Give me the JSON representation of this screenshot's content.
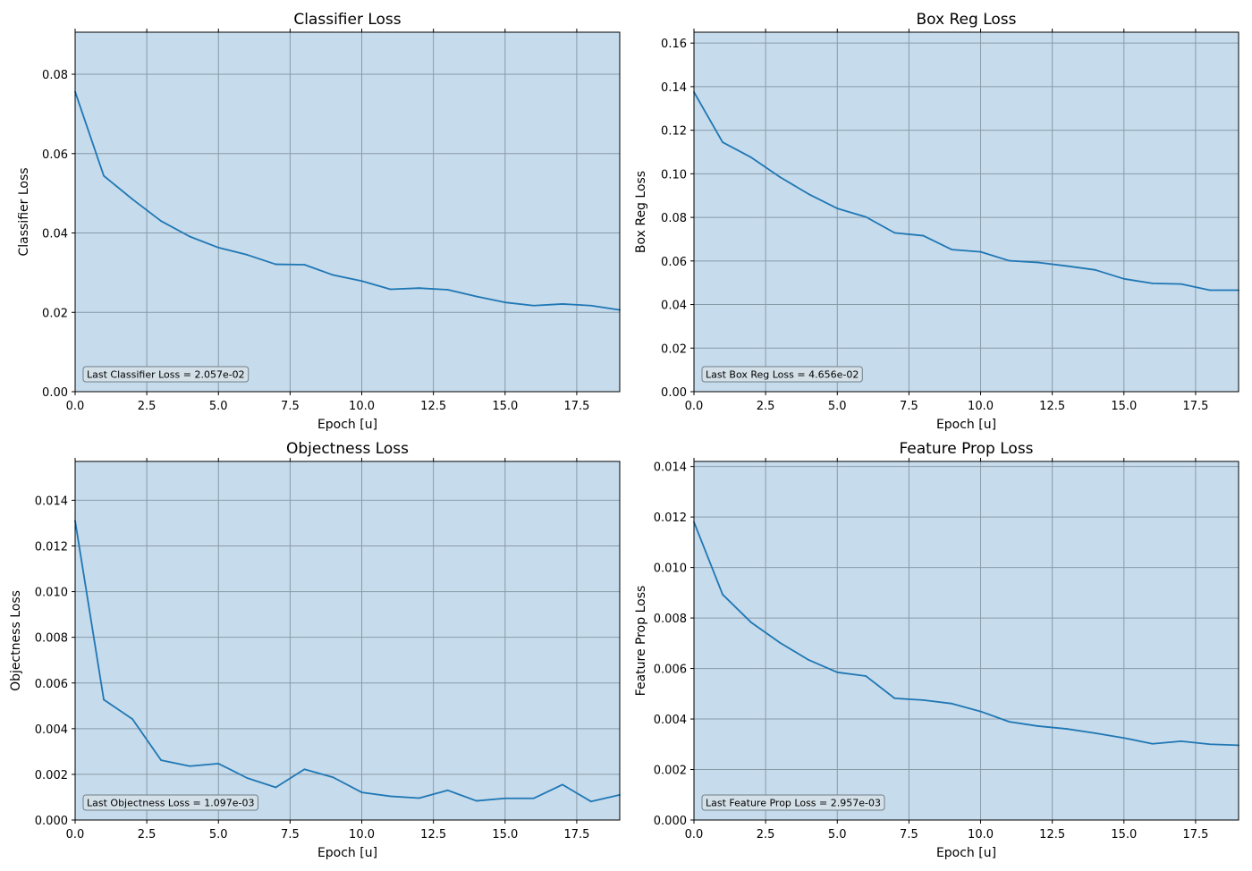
{
  "chart_data": [
    {
      "type": "line",
      "title": "Classifier Loss",
      "xlabel": "Epoch [u]",
      "ylabel": "Classifier Loss",
      "xlim": [
        0,
        19
      ],
      "ylim": [
        0,
        0.0906
      ],
      "xticks": [
        0,
        2.5,
        5,
        7.5,
        10,
        12.5,
        15,
        17.5
      ],
      "xtick_labels": [
        "0.0",
        "2.5",
        "5.0",
        "7.5",
        "10.0",
        "12.5",
        "15.0",
        "17.5"
      ],
      "yticks": [
        0,
        0.02,
        0.04,
        0.06,
        0.08
      ],
      "ytick_labels": [
        "0.00",
        "0.02",
        "0.04",
        "0.06",
        "0.08"
      ],
      "grid": true,
      "fill_color": "#c6dbec",
      "line_color": "#1f77b4",
      "annotation": "Last Classifier Loss = 2.057e-02",
      "series": [
        {
          "x": [
            0,
            1,
            2,
            3,
            4,
            5,
            6,
            7,
            8,
            9,
            10,
            11,
            12,
            13,
            14,
            15,
            16,
            17,
            18,
            19
          ],
          "y": [
            0.0756,
            0.0544,
            0.0485,
            0.043,
            0.0391,
            0.0363,
            0.0345,
            0.0321,
            0.032,
            0.0294,
            0.0279,
            0.0258,
            0.0261,
            0.0257,
            0.024,
            0.0225,
            0.0217,
            0.0221,
            0.0217,
            0.0206
          ]
        }
      ]
    },
    {
      "type": "line",
      "title": "Box Reg Loss",
      "xlabel": "Epoch [u]",
      "ylabel": "Box Reg Loss",
      "xlim": [
        0,
        19
      ],
      "ylim": [
        0,
        0.165
      ],
      "xticks": [
        0,
        2.5,
        5,
        7.5,
        10,
        12.5,
        15,
        17.5
      ],
      "xtick_labels": [
        "0.0",
        "2.5",
        "5.0",
        "7.5",
        "10.0",
        "12.5",
        "15.0",
        "17.5"
      ],
      "yticks": [
        0,
        0.02,
        0.04,
        0.06,
        0.08,
        0.1,
        0.12,
        0.14,
        0.16
      ],
      "ytick_labels": [
        "0.00",
        "0.02",
        "0.04",
        "0.06",
        "0.08",
        "0.10",
        "0.12",
        "0.14",
        "0.16"
      ],
      "grid": true,
      "fill_color": "#c6dbec",
      "line_color": "#1f77b4",
      "annotation": "Last Box Reg Loss = 4.656e-02",
      "series": [
        {
          "x": [
            0,
            1,
            2,
            3,
            4,
            5,
            6,
            7,
            8,
            9,
            10,
            11,
            12,
            13,
            14,
            15,
            16,
            17,
            18,
            19
          ],
          "y": [
            0.1375,
            0.1145,
            0.1075,
            0.0985,
            0.0907,
            0.0841,
            0.0802,
            0.0729,
            0.0716,
            0.0652,
            0.0642,
            0.0601,
            0.0593,
            0.0577,
            0.0559,
            0.0518,
            0.0497,
            0.0494,
            0.0466,
            0.0466
          ]
        }
      ]
    },
    {
      "type": "line",
      "title": "Objectness Loss",
      "xlabel": "Epoch [u]",
      "ylabel": "Objectness Loss",
      "xlim": [
        0,
        19
      ],
      "ylim": [
        0,
        0.0157
      ],
      "xticks": [
        0,
        2.5,
        5,
        7.5,
        10,
        12.5,
        15,
        17.5
      ],
      "xtick_labels": [
        "0.0",
        "2.5",
        "5.0",
        "7.5",
        "10.0",
        "12.5",
        "15.0",
        "17.5"
      ],
      "yticks": [
        0,
        0.002,
        0.004,
        0.006,
        0.008,
        0.01,
        0.012,
        0.014
      ],
      "ytick_labels": [
        "0.000",
        "0.002",
        "0.004",
        "0.006",
        "0.008",
        "0.010",
        "0.012",
        "0.014"
      ],
      "grid": true,
      "fill_color": "#c6dbec",
      "line_color": "#1f77b4",
      "annotation": "Last Objectness Loss = 1.097e-03",
      "series": [
        {
          "x": [
            0,
            1,
            2,
            3,
            4,
            5,
            6,
            7,
            8,
            9,
            10,
            11,
            12,
            13,
            14,
            15,
            16,
            17,
            18,
            19
          ],
          "y": [
            0.0131,
            0.00527,
            0.00442,
            0.00262,
            0.00236,
            0.00247,
            0.00184,
            0.00143,
            0.00222,
            0.00187,
            0.00121,
            0.00104,
            0.00096,
            0.0013,
            0.00084,
            0.00095,
            0.00095,
            0.00155,
            0.00081,
            0.0011
          ]
        }
      ]
    },
    {
      "type": "line",
      "title": "Feature Prop Loss",
      "xlabel": "Epoch [u]",
      "ylabel": "Feature Prop Loss",
      "xlim": [
        0,
        19
      ],
      "ylim": [
        0,
        0.0142
      ],
      "xticks": [
        0,
        2.5,
        5,
        7.5,
        10,
        12.5,
        15,
        17.5
      ],
      "xtick_labels": [
        "0.0",
        "2.5",
        "5.0",
        "7.5",
        "10.0",
        "12.5",
        "15.0",
        "17.5"
      ],
      "yticks": [
        0,
        0.002,
        0.004,
        0.006,
        0.008,
        0.01,
        0.012,
        0.014
      ],
      "ytick_labels": [
        "0.000",
        "0.002",
        "0.004",
        "0.006",
        "0.008",
        "0.010",
        "0.012",
        "0.014"
      ],
      "grid": true,
      "fill_color": "#c6dbec",
      "line_color": "#1f77b4",
      "annotation": "Last Feature Prop Loss = 2.957e-03",
      "series": [
        {
          "x": [
            0,
            1,
            2,
            3,
            4,
            5,
            6,
            7,
            8,
            9,
            10,
            11,
            12,
            13,
            14,
            15,
            16,
            17,
            18,
            19
          ],
          "y": [
            0.0118,
            0.00893,
            0.00782,
            0.00702,
            0.00634,
            0.00585,
            0.0057,
            0.00482,
            0.00475,
            0.00461,
            0.0043,
            0.00389,
            0.00372,
            0.00361,
            0.00344,
            0.00325,
            0.00302,
            0.00312,
            0.003,
            0.00296
          ]
        }
      ]
    }
  ]
}
